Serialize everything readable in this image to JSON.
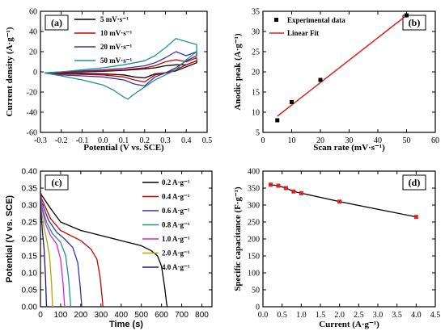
{
  "chart_data": [
    {
      "type": "line",
      "panel_label": "(a)",
      "xlabel": "Potential (V vs. SCE)",
      "ylabel": "Current density (A·g⁻¹)",
      "xlim": [
        -0.3,
        0.5
      ],
      "ylim": [
        -60,
        60
      ],
      "xticks": [
        "-0.3",
        "-0.2",
        "-0.1",
        "0.0",
        "0.1",
        "0.2",
        "0.3",
        "0.4",
        "0.5"
      ],
      "yticks": [
        "-60",
        "-40",
        "-20",
        "0",
        "20",
        "40",
        "60"
      ],
      "legend_position": "top-left",
      "series": [
        {
          "name": "5 mV·s⁻¹",
          "color": "#000000",
          "x": [
            -0.28,
            -0.2,
            -0.1,
            0.0,
            0.1,
            0.2,
            0.25,
            0.3,
            0.35,
            0.4,
            0.45,
            0.45,
            0.4,
            0.35,
            0.3,
            0.25,
            0.2,
            0.15,
            0.1,
            0.0,
            -0.1,
            -0.2,
            -0.28
          ],
          "y": [
            -1,
            -0.5,
            0,
            0.5,
            1.5,
            3,
            4,
            6,
            7,
            7,
            11,
            9,
            5,
            1,
            -1,
            -2,
            -6,
            -5,
            -3,
            -2,
            -1.5,
            -1.5,
            -1
          ]
        },
        {
          "name": "10 mV·s⁻¹",
          "color": "#cc0000",
          "x": [
            -0.28,
            -0.2,
            -0.1,
            0.0,
            0.1,
            0.2,
            0.25,
            0.3,
            0.35,
            0.4,
            0.45,
            0.45,
            0.4,
            0.35,
            0.3,
            0.25,
            0.2,
            0.15,
            0.1,
            0.0,
            -0.1,
            -0.2,
            -0.28
          ],
          "y": [
            -1,
            -0.5,
            0.5,
            1,
            2,
            4,
            6,
            10,
            12,
            10,
            14,
            11,
            7,
            2,
            -1,
            -3,
            -10,
            -8,
            -5,
            -3,
            -2.5,
            -2,
            -1
          ]
        },
        {
          "name": "20 mV·s⁻¹",
          "color": "#3333aa",
          "x": [
            -0.28,
            -0.2,
            -0.1,
            0.0,
            0.1,
            0.2,
            0.25,
            0.3,
            0.35,
            0.4,
            0.45,
            0.45,
            0.4,
            0.35,
            0.3,
            0.25,
            0.2,
            0.15,
            0.1,
            0.0,
            -0.1,
            -0.2,
            -0.28
          ],
          "y": [
            -1,
            0,
            1,
            2,
            3.5,
            6,
            9,
            14,
            20,
            16,
            20,
            16,
            11,
            4,
            -1,
            -5,
            -14,
            -12,
            -8,
            -5,
            -4,
            -3,
            -1
          ]
        },
        {
          "name": "50 mV·s⁻¹",
          "color": "#1f8f8f",
          "x": [
            -0.28,
            -0.2,
            -0.1,
            0.0,
            0.1,
            0.2,
            0.25,
            0.3,
            0.35,
            0.4,
            0.45,
            0.45,
            0.4,
            0.35,
            0.3,
            0.25,
            0.2,
            0.15,
            0.12,
            0.1,
            0.05,
            0.0,
            -0.1,
            -0.2,
            -0.28
          ],
          "y": [
            -1,
            0,
            2,
            4,
            7,
            11,
            16,
            24,
            33,
            30,
            27,
            20,
            12,
            2,
            -3,
            -8,
            -15,
            -22,
            -27,
            -25,
            -18,
            -13,
            -8,
            -4,
            -1
          ]
        }
      ]
    },
    {
      "type": "scatter",
      "panel_label": "(b)",
      "xlabel": "Scan rate (mV·s⁻¹)",
      "ylabel": "Anodic peak (A·g⁻¹)",
      "xlim": [
        0,
        60
      ],
      "ylim": [
        5,
        35
      ],
      "xticks": [
        "0",
        "10",
        "20",
        "30",
        "40",
        "50",
        "60"
      ],
      "yticks": [
        "5",
        "10",
        "15",
        "20",
        "25",
        "30",
        "35"
      ],
      "legend_position": "top-left",
      "series": [
        {
          "name": "Experimental data",
          "color": "#000000",
          "x": [
            5,
            10,
            20,
            50
          ],
          "y": [
            8,
            12.5,
            18,
            34
          ]
        },
        {
          "name": "Linear Fit",
          "color": "#e02020",
          "x": [
            5,
            50
          ],
          "y": [
            9.0,
            34.0
          ]
        }
      ]
    },
    {
      "type": "line",
      "panel_label": "(c)",
      "xlabel": "Time (s)",
      "ylabel": "Potential (V vs. SCE)",
      "xlim": [
        0,
        850
      ],
      "ylim": [
        0,
        0.4
      ],
      "xticks": [
        "0",
        "100",
        "200",
        "300",
        "400",
        "500",
        "600",
        "700",
        "800"
      ],
      "yticks": [
        "0.00",
        "0.05",
        "0.10",
        "0.15",
        "0.20",
        "0.25",
        "0.30",
        "0.35",
        "0.40"
      ],
      "legend_position": "top-right",
      "series": [
        {
          "name": "0.2 A·g⁻¹",
          "color": "#000000",
          "x": [
            0,
            5,
            50,
            100,
            200,
            300,
            400,
            500,
            550,
            580,
            600,
            615,
            625,
            628
          ],
          "y": [
            0.34,
            0.33,
            0.29,
            0.25,
            0.225,
            0.21,
            0.195,
            0.18,
            0.165,
            0.15,
            0.12,
            0.06,
            0.01,
            0
          ]
        },
        {
          "name": "0.4 A·g⁻¹",
          "color": "#cc0000",
          "x": [
            0,
            5,
            50,
            100,
            150,
            200,
            250,
            280,
            295,
            305,
            310
          ],
          "y": [
            0.34,
            0.32,
            0.26,
            0.225,
            0.21,
            0.195,
            0.17,
            0.14,
            0.09,
            0.03,
            0
          ]
        },
        {
          "name": "0.6 A·g⁻¹",
          "color": "#3333aa",
          "x": [
            0,
            5,
            40,
            80,
            120,
            160,
            185,
            197,
            205
          ],
          "y": [
            0.34,
            0.31,
            0.255,
            0.22,
            0.2,
            0.175,
            0.13,
            0.06,
            0
          ]
        },
        {
          "name": "0.8 A·g⁻¹",
          "color": "#1f8f8f",
          "x": [
            0,
            5,
            30,
            60,
            100,
            125,
            140,
            150
          ],
          "y": [
            0.34,
            0.3,
            0.25,
            0.215,
            0.19,
            0.15,
            0.08,
            0
          ]
        },
        {
          "name": "1.0 A·g⁻¹",
          "color": "#dd22dd",
          "x": [
            0,
            5,
            25,
            50,
            80,
            100,
            112,
            120
          ],
          "y": [
            0.34,
            0.3,
            0.245,
            0.21,
            0.185,
            0.14,
            0.07,
            0
          ]
        },
        {
          "name": "2.0 A·g⁻¹",
          "color": "#aaaa00",
          "x": [
            0,
            5,
            15,
            30,
            45,
            55,
            60
          ],
          "y": [
            0.34,
            0.29,
            0.24,
            0.2,
            0.15,
            0.07,
            0
          ]
        },
        {
          "name": "4.0 A·g⁻¹",
          "color": "#1a1a7a",
          "x": [
            0,
            3,
            10,
            18,
            25,
            30
          ],
          "y": [
            0.34,
            0.28,
            0.22,
            0.17,
            0.09,
            0
          ]
        }
      ]
    },
    {
      "type": "line",
      "panel_label": "(d)",
      "xlabel": "Current (A·g⁻¹)",
      "ylabel": "Specific capacitance (F·g⁻¹)",
      "xlim": [
        0,
        4.5
      ],
      "ylim": [
        0,
        400
      ],
      "xticks": [
        "0.0",
        "0.5",
        "1.0",
        "1.5",
        "2.0",
        "2.5",
        "3.0",
        "3.5",
        "4.0",
        "4.5"
      ],
      "yticks": [
        "0",
        "50",
        "100",
        "150",
        "200",
        "250",
        "300",
        "350",
        "400"
      ],
      "series": [
        {
          "name": "",
          "color": "#000000",
          "marker_color": "#e02020",
          "x": [
            0.2,
            0.4,
            0.6,
            0.8,
            1.0,
            2.0,
            4.0
          ],
          "y": [
            360,
            357,
            350,
            340,
            335,
            310,
            265
          ]
        }
      ]
    }
  ]
}
